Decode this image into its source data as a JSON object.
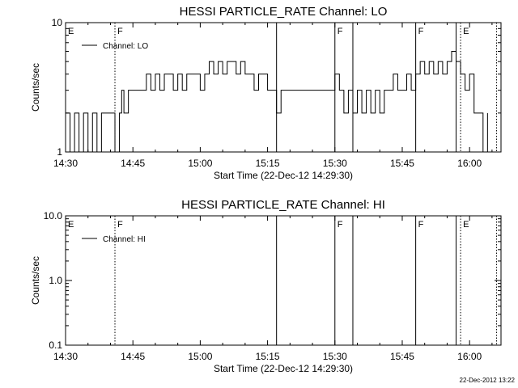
{
  "chart_data": [
    {
      "type": "line",
      "title": "HESSI PARTICLE_RATE Channel: LO",
      "xlabel": "Start Time (22-Dec-12 14:29:30)",
      "ylabel": "Counts/sec",
      "yscale": "log",
      "ylim": [
        1,
        10
      ],
      "xlim": [
        "14:30",
        "16:07"
      ],
      "xticks": [
        "14:30",
        "14:45",
        "15:00",
        "15:15",
        "15:30",
        "15:45",
        "16:00"
      ],
      "yticks": [
        "1",
        "10"
      ],
      "legend": "top-left",
      "series": [
        {
          "name": "Channel: LO",
          "x_minutes_after_1430": [
            0,
            1,
            2,
            3,
            4,
            5,
            6,
            7,
            8,
            9,
            10,
            11,
            12,
            12.5,
            13,
            14,
            15,
            16,
            17,
            18,
            19,
            20,
            21,
            22,
            23,
            24,
            25,
            26,
            27,
            28,
            29,
            30,
            31,
            32,
            33,
            34,
            35,
            36,
            37,
            38,
            39,
            40,
            41,
            42,
            43,
            44,
            45,
            46,
            47,
            48,
            49,
            50,
            51,
            52,
            53,
            54,
            55,
            56,
            57,
            58,
            59,
            60,
            61,
            62,
            63,
            64,
            65,
            66,
            67,
            68,
            69,
            70,
            71,
            72,
            73,
            74,
            75,
            76,
            77,
            78,
            79,
            80,
            81,
            82,
            83,
            84,
            85,
            86,
            87,
            88,
            89,
            90,
            91,
            92,
            93,
            94
          ],
          "values": [
            2,
            1,
            2,
            1,
            2,
            1,
            2,
            1,
            2,
            2,
            2,
            1,
            2,
            3,
            2,
            3,
            3,
            3,
            3,
            4,
            3,
            4,
            3,
            4,
            4,
            3,
            4,
            3,
            4,
            4,
            4,
            3,
            4,
            5,
            4,
            5,
            4,
            5,
            5,
            4,
            5,
            4,
            4,
            3,
            4,
            4,
            3,
            3,
            2,
            3,
            3,
            3,
            3,
            3,
            3,
            3,
            3,
            3,
            3,
            3,
            3,
            4,
            3,
            2,
            3,
            2,
            3,
            2,
            3,
            2,
            3,
            2,
            3,
            3,
            4,
            3,
            3,
            4,
            3,
            4,
            5,
            4,
            5,
            4,
            5,
            4,
            5,
            6,
            5,
            4,
            3,
            4,
            2,
            2,
            1,
            2
          ]
        }
      ],
      "vlines_solid": [
        "15:17",
        "15:30",
        "15:34",
        "15:48",
        "15:57"
      ],
      "vlines_dotted": [
        "14:41",
        "15:58",
        "16:06"
      ],
      "flags": [
        {
          "label": "E",
          "at": "14:30"
        },
        {
          "label": "F",
          "at": "14:41"
        },
        {
          "label": "F",
          "at": "15:30"
        },
        {
          "label": "F",
          "at": "15:48"
        },
        {
          "label": "E",
          "at": "15:58"
        }
      ]
    },
    {
      "type": "line",
      "title": "HESSI PARTICLE_RATE Channel: HI",
      "xlabel": "Start Time (22-Dec-12 14:29:30)",
      "ylabel": "Counts/sec",
      "yscale": "log",
      "ylim": [
        0.1,
        10
      ],
      "xlim": [
        "14:30",
        "16:07"
      ],
      "xticks": [
        "14:30",
        "14:45",
        "15:00",
        "15:15",
        "15:30",
        "15:45",
        "16:00"
      ],
      "yticks": [
        "0.1",
        "1.0",
        "10.0"
      ],
      "legend": "top-left",
      "series": [
        {
          "name": "Channel: HI",
          "x_minutes_after_1430": [],
          "values": []
        }
      ],
      "vlines_solid": [
        "15:17",
        "15:30",
        "15:34",
        "15:48",
        "15:57"
      ],
      "vlines_dotted": [
        "14:41",
        "15:58",
        "16:06"
      ],
      "flags": [
        {
          "label": "E",
          "at": "14:30"
        },
        {
          "label": "F",
          "at": "14:41"
        },
        {
          "label": "F",
          "at": "15:30"
        },
        {
          "label": "F",
          "at": "15:48"
        },
        {
          "label": "E",
          "at": "15:58"
        }
      ]
    }
  ],
  "footer": {
    "timestamp": "22-Dec-2012 13:22"
  }
}
